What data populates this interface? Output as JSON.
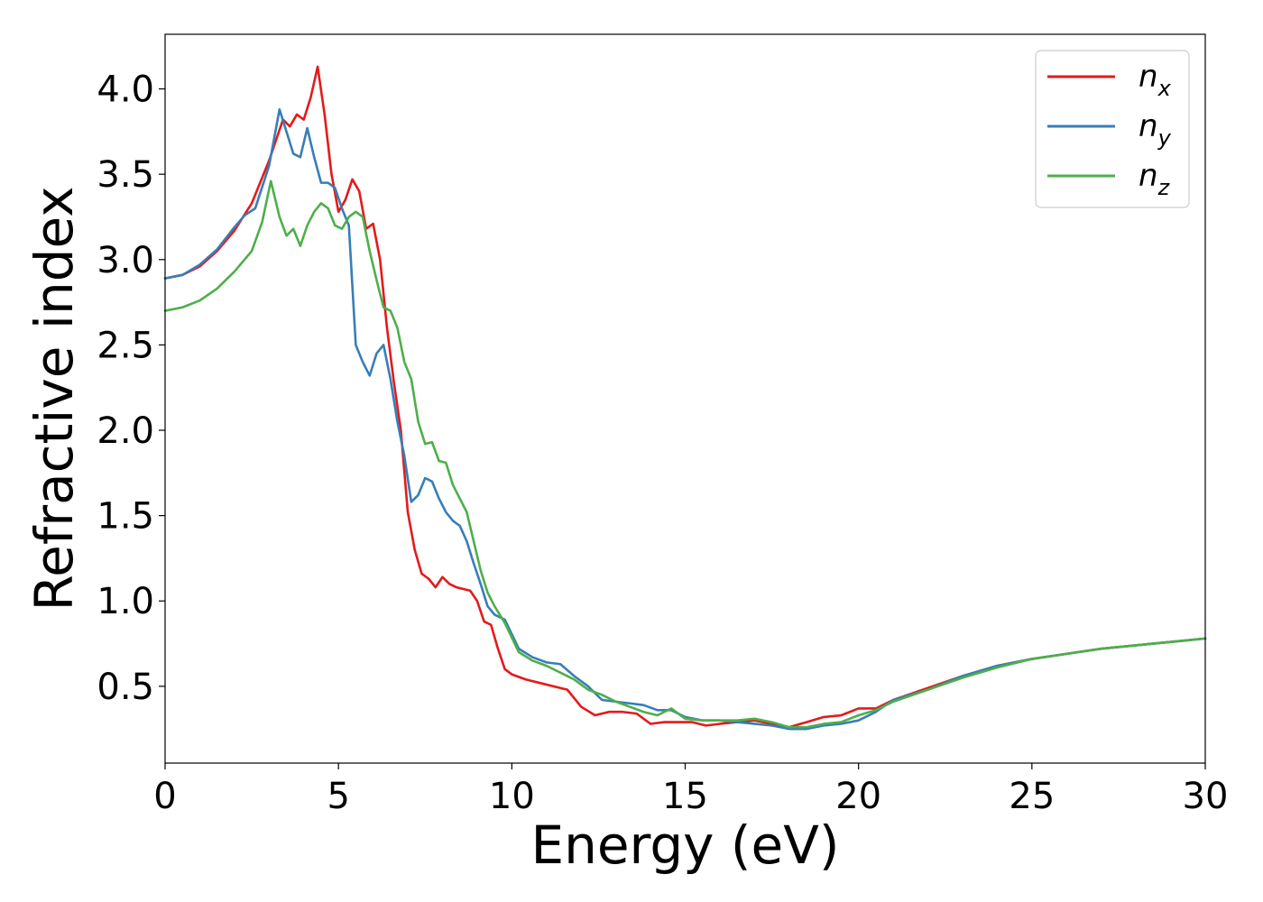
{
  "chart_data": {
    "type": "line",
    "xlabel": "Energy (eV)",
    "ylabel": "Refractive index",
    "xlim": [
      0,
      30
    ],
    "ylim": [
      0.05,
      4.32
    ],
    "xticks": [
      "0",
      "5",
      "10",
      "15",
      "20",
      "25",
      "30"
    ],
    "yticks": [
      "0.5",
      "1.0",
      "1.5",
      "2.0",
      "2.5",
      "3.0",
      "3.5",
      "4.0"
    ],
    "grid": false,
    "legend_position": "top-right",
    "series": [
      {
        "name": "n",
        "subscript": "x",
        "color": "#e41a1c",
        "x": [
          0,
          0.5,
          1.0,
          1.5,
          2.0,
          2.5,
          3.0,
          3.4,
          3.6,
          3.8,
          4.0,
          4.2,
          4.4,
          4.6,
          4.8,
          5.0,
          5.2,
          5.4,
          5.6,
          5.8,
          6.0,
          6.2,
          6.4,
          6.6,
          6.8,
          7.0,
          7.2,
          7.4,
          7.6,
          7.8,
          8.0,
          8.2,
          8.4,
          8.6,
          8.8,
          9.0,
          9.2,
          9.4,
          9.6,
          9.8,
          10.0,
          10.4,
          10.8,
          11.2,
          11.6,
          12.0,
          12.4,
          12.8,
          13.2,
          13.6,
          14.0,
          14.4,
          14.8,
          15.2,
          15.6,
          16.0,
          16.5,
          17.0,
          17.5,
          18.0,
          18.5,
          19.0,
          19.5,
          20.0,
          20.5,
          21.0,
          22.0,
          23.0,
          24.0,
          25.0,
          26.0,
          27.0,
          28.0,
          29.0,
          30.0
        ],
        "values": [
          2.89,
          2.91,
          2.96,
          3.05,
          3.17,
          3.33,
          3.58,
          3.82,
          3.78,
          3.85,
          3.82,
          3.95,
          4.13,
          3.85,
          3.5,
          3.28,
          3.35,
          3.47,
          3.4,
          3.18,
          3.21,
          3.0,
          2.6,
          2.28,
          2.0,
          1.52,
          1.3,
          1.16,
          1.13,
          1.08,
          1.14,
          1.1,
          1.08,
          1.07,
          1.06,
          1.0,
          0.88,
          0.86,
          0.72,
          0.6,
          0.57,
          0.54,
          0.52,
          0.5,
          0.48,
          0.38,
          0.33,
          0.35,
          0.35,
          0.34,
          0.28,
          0.29,
          0.29,
          0.29,
          0.27,
          0.28,
          0.29,
          0.3,
          0.28,
          0.26,
          0.29,
          0.32,
          0.33,
          0.37,
          0.37,
          0.42,
          0.49,
          0.56,
          0.62,
          0.66,
          0.69,
          0.72,
          0.74,
          0.76,
          0.78
        ]
      },
      {
        "name": "n",
        "subscript": "y",
        "color": "#377eb8",
        "x": [
          0,
          0.5,
          1.0,
          1.5,
          2.0,
          2.3,
          2.6,
          3.0,
          3.3,
          3.5,
          3.7,
          3.9,
          4.1,
          4.3,
          4.5,
          4.7,
          4.9,
          5.1,
          5.3,
          5.5,
          5.7,
          5.9,
          6.1,
          6.3,
          6.5,
          6.7,
          6.9,
          7.1,
          7.3,
          7.5,
          7.7,
          7.9,
          8.1,
          8.3,
          8.5,
          8.7,
          8.9,
          9.1,
          9.3,
          9.5,
          9.8,
          10.2,
          10.6,
          11.0,
          11.4,
          11.8,
          12.2,
          12.6,
          13.0,
          13.4,
          13.8,
          14.2,
          14.6,
          15.0,
          15.5,
          16.0,
          16.5,
          17.0,
          17.5,
          18.0,
          18.5,
          19.0,
          19.5,
          20.0,
          20.5,
          21.0,
          22.0,
          23.0,
          24.0,
          25.0,
          26.0,
          27.0,
          28.0,
          29.0,
          30.0
        ],
        "values": [
          2.89,
          2.91,
          2.97,
          3.06,
          3.19,
          3.26,
          3.3,
          3.55,
          3.88,
          3.75,
          3.62,
          3.6,
          3.77,
          3.6,
          3.45,
          3.45,
          3.42,
          3.3,
          3.2,
          2.5,
          2.4,
          2.32,
          2.45,
          2.5,
          2.3,
          2.05,
          1.85,
          1.58,
          1.62,
          1.72,
          1.7,
          1.6,
          1.52,
          1.47,
          1.44,
          1.35,
          1.22,
          1.1,
          0.97,
          0.92,
          0.89,
          0.72,
          0.67,
          0.64,
          0.63,
          0.56,
          0.5,
          0.42,
          0.41,
          0.4,
          0.39,
          0.36,
          0.36,
          0.32,
          0.3,
          0.3,
          0.29,
          0.28,
          0.27,
          0.25,
          0.25,
          0.27,
          0.28,
          0.3,
          0.35,
          0.42,
          0.48,
          0.56,
          0.62,
          0.66,
          0.69,
          0.72,
          0.74,
          0.76,
          0.78
        ]
      },
      {
        "name": "n",
        "subscript": "z",
        "color": "#4daf4a",
        "x": [
          0,
          0.5,
          1.0,
          1.5,
          2.0,
          2.5,
          2.8,
          3.05,
          3.3,
          3.5,
          3.7,
          3.9,
          4.1,
          4.3,
          4.5,
          4.7,
          4.9,
          5.1,
          5.3,
          5.5,
          5.7,
          5.9,
          6.1,
          6.3,
          6.5,
          6.7,
          6.9,
          7.1,
          7.3,
          7.5,
          7.7,
          7.9,
          8.1,
          8.3,
          8.5,
          8.7,
          8.9,
          9.1,
          9.3,
          9.5,
          9.8,
          10.2,
          10.6,
          11.0,
          11.4,
          11.8,
          12.2,
          12.6,
          13.0,
          13.4,
          13.8,
          14.2,
          14.6,
          15.0,
          15.5,
          16.0,
          16.5,
          17.0,
          17.5,
          18.0,
          18.5,
          19.0,
          19.5,
          20.0,
          20.5,
          21.0,
          22.0,
          23.0,
          24.0,
          25.0,
          26.0,
          27.0,
          28.0,
          29.0,
          30.0
        ],
        "values": [
          2.7,
          2.72,
          2.76,
          2.83,
          2.93,
          3.05,
          3.22,
          3.46,
          3.25,
          3.14,
          3.18,
          3.08,
          3.2,
          3.28,
          3.33,
          3.3,
          3.2,
          3.18,
          3.25,
          3.28,
          3.25,
          3.05,
          2.88,
          2.72,
          2.7,
          2.6,
          2.4,
          2.3,
          2.05,
          1.92,
          1.93,
          1.82,
          1.81,
          1.68,
          1.6,
          1.52,
          1.35,
          1.18,
          1.05,
          0.97,
          0.87,
          0.7,
          0.65,
          0.62,
          0.58,
          0.54,
          0.48,
          0.45,
          0.41,
          0.38,
          0.35,
          0.33,
          0.37,
          0.31,
          0.3,
          0.3,
          0.3,
          0.31,
          0.29,
          0.26,
          0.26,
          0.28,
          0.29,
          0.33,
          0.36,
          0.41,
          0.48,
          0.55,
          0.61,
          0.66,
          0.69,
          0.72,
          0.74,
          0.76,
          0.78
        ]
      }
    ]
  }
}
